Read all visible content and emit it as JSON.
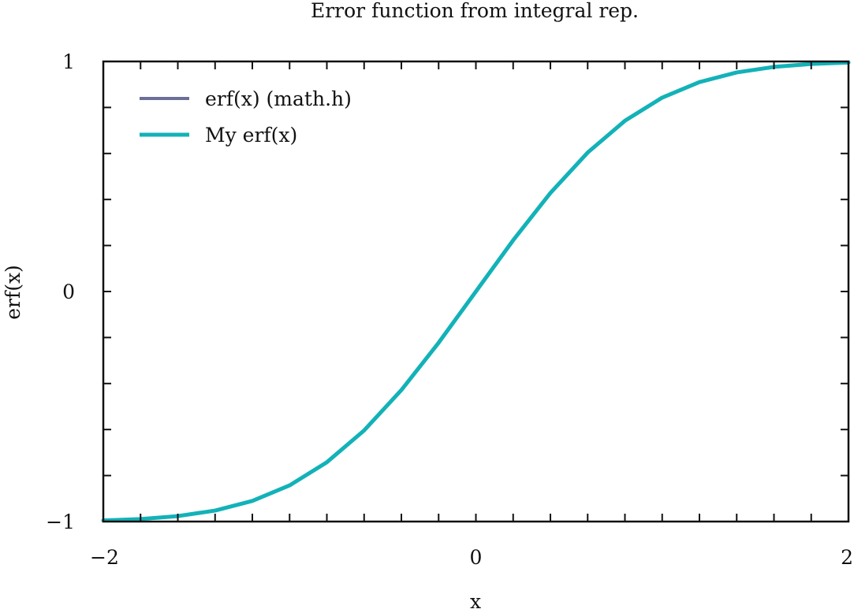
{
  "chart_data": {
    "type": "line",
    "title": "Error function from integral rep.",
    "xlabel": "x",
    "ylabel": "erf(x)",
    "xlim": [
      -2,
      2
    ],
    "ylim": [
      -1,
      1
    ],
    "x_ticks": [
      {
        "value": -2,
        "label": "−2"
      },
      {
        "value": 0,
        "label": "0"
      },
      {
        "value": 2,
        "label": "2"
      }
    ],
    "y_ticks": [
      {
        "value": -1,
        "label": "−1"
      },
      {
        "value": 0,
        "label": "0"
      },
      {
        "value": 1,
        "label": "1"
      }
    ],
    "x_minor_step": 0.2,
    "y_minor_step": 0.2,
    "grid": false,
    "legend_position": "top-left",
    "x": [
      -2.0,
      -1.8,
      -1.6,
      -1.4,
      -1.2,
      -1.0,
      -0.8,
      -0.6,
      -0.4,
      -0.2,
      0.0,
      0.2,
      0.4,
      0.6,
      0.8,
      1.0,
      1.2,
      1.4,
      1.6,
      1.8,
      2.0
    ],
    "series": [
      {
        "name": "erf(x) (math.h)",
        "color": "#6b6f97",
        "values": [
          -0.9953,
          -0.9891,
          -0.9763,
          -0.9523,
          -0.9103,
          -0.8427,
          -0.7421,
          -0.6039,
          -0.4284,
          -0.2227,
          0.0,
          0.2227,
          0.4284,
          0.6039,
          0.7421,
          0.8427,
          0.9103,
          0.9523,
          0.9763,
          0.9891,
          0.9953
        ]
      },
      {
        "name": "My erf(x)",
        "color": "#12b2b8",
        "values": [
          -0.9953,
          -0.9891,
          -0.9763,
          -0.9523,
          -0.9103,
          -0.8427,
          -0.7421,
          -0.6039,
          -0.4284,
          -0.2227,
          0.0,
          0.2227,
          0.4284,
          0.6039,
          0.7421,
          0.8427,
          0.9103,
          0.9523,
          0.9763,
          0.9891,
          0.9953
        ]
      }
    ]
  }
}
